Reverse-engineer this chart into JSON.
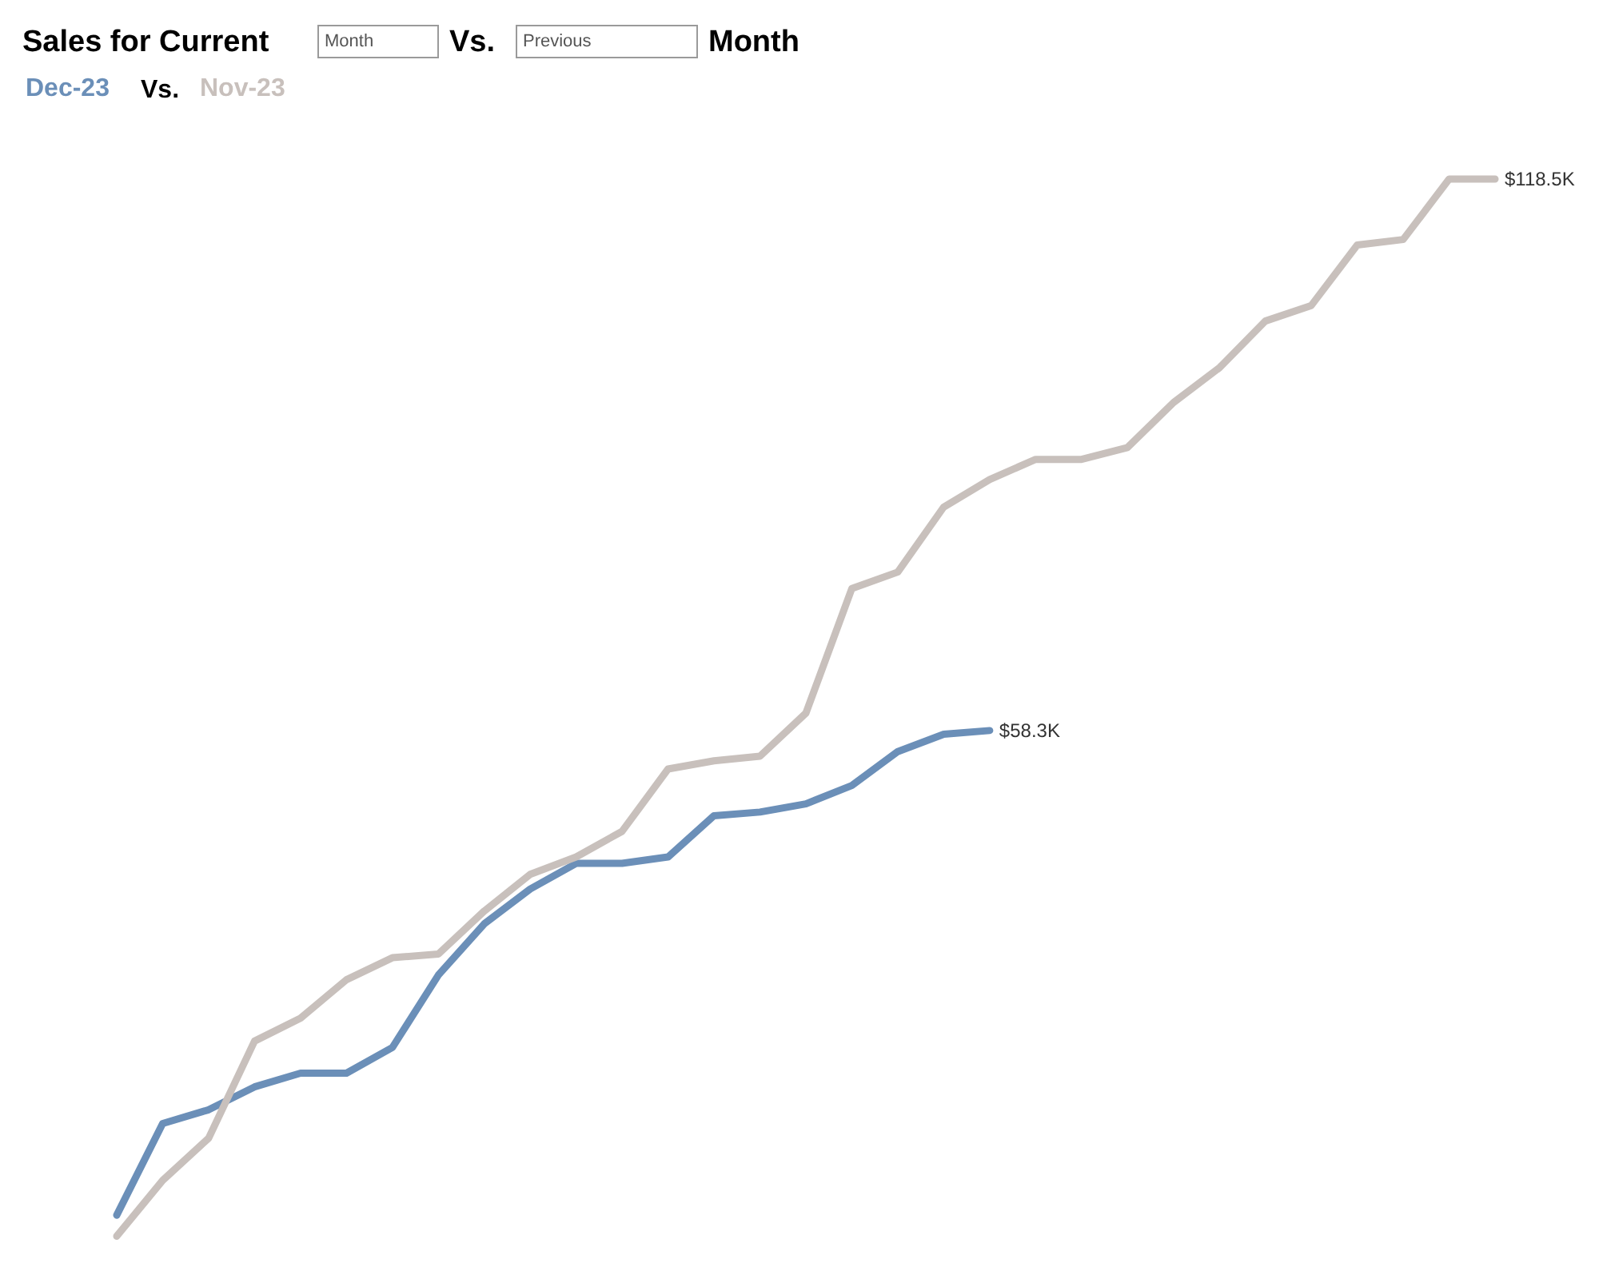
{
  "chart_data": {
    "type": "line",
    "title": "Sales for Current",
    "legend": "top left",
    "annotations": [
      "Month",
      "Vs.",
      "Previous",
      "Month",
      "Vs."
    ],
    "categories": [
      null,
      null,
      null,
      null,
      null,
      null,
      null,
      null,
      null,
      null,
      null,
      null,
      null,
      null,
      null,
      null,
      null,
      null,
      null,
      null,
      null,
      null,
      null,
      null,
      null,
      null,
      null,
      null,
      null,
      null,
      null
    ],
    "series": [
      {
        "name": "Dec-23",
        "color": "#6b8fb8",
        "values": [
          5.4,
          15.4,
          16.9,
          19.4,
          20.9,
          20.9,
          23.7,
          31.6,
          37.2,
          41.0,
          43.8,
          43.8,
          44.5,
          49.0,
          49.4,
          50.3,
          52.3,
          56.0,
          57.9,
          58.3,
          null,
          null,
          null,
          null,
          null,
          null,
          null,
          null,
          null,
          null,
          null
        ],
        "value_labels": [
          null,
          null,
          null,
          null,
          null,
          null,
          null,
          null,
          null,
          null,
          null,
          null,
          null,
          null,
          null,
          null,
          null,
          null,
          null,
          "$58.3K",
          null,
          null,
          null,
          null,
          null,
          null,
          null,
          null,
          null,
          null,
          null
        ]
      },
      {
        "name": "Nov-23",
        "color": "#c8c0bc",
        "values": [
          3.1,
          9.2,
          13.8,
          24.4,
          26.9,
          31.1,
          33.5,
          33.9,
          38.6,
          42.6,
          44.5,
          47.3,
          54.1,
          55.0,
          55.5,
          60.2,
          73.8,
          75.6,
          82.7,
          85.7,
          87.9,
          87.9,
          89.2,
          94.1,
          97.9,
          103.0,
          104.7,
          111.3,
          111.9,
          118.5,
          118.5
        ],
        "value_labels": [
          null,
          null,
          null,
          null,
          null,
          null,
          null,
          null,
          null,
          null,
          null,
          null,
          null,
          null,
          null,
          null,
          null,
          null,
          null,
          null,
          null,
          null,
          null,
          null,
          null,
          null,
          null,
          null,
          null,
          null,
          "$118.5K"
        ]
      }
    ]
  }
}
